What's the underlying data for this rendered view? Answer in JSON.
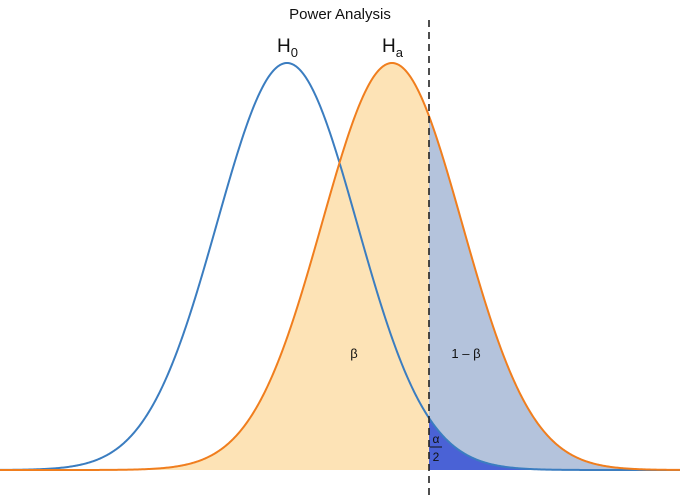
{
  "title": "Power Analysis",
  "labels": {
    "h0": {
      "main": "H",
      "sub": "0"
    },
    "ha": {
      "main": "H",
      "sub": "a"
    },
    "beta": "β",
    "power": "1 – β",
    "alpha": {
      "numerator": "α",
      "denominator": "2"
    }
  }
}
